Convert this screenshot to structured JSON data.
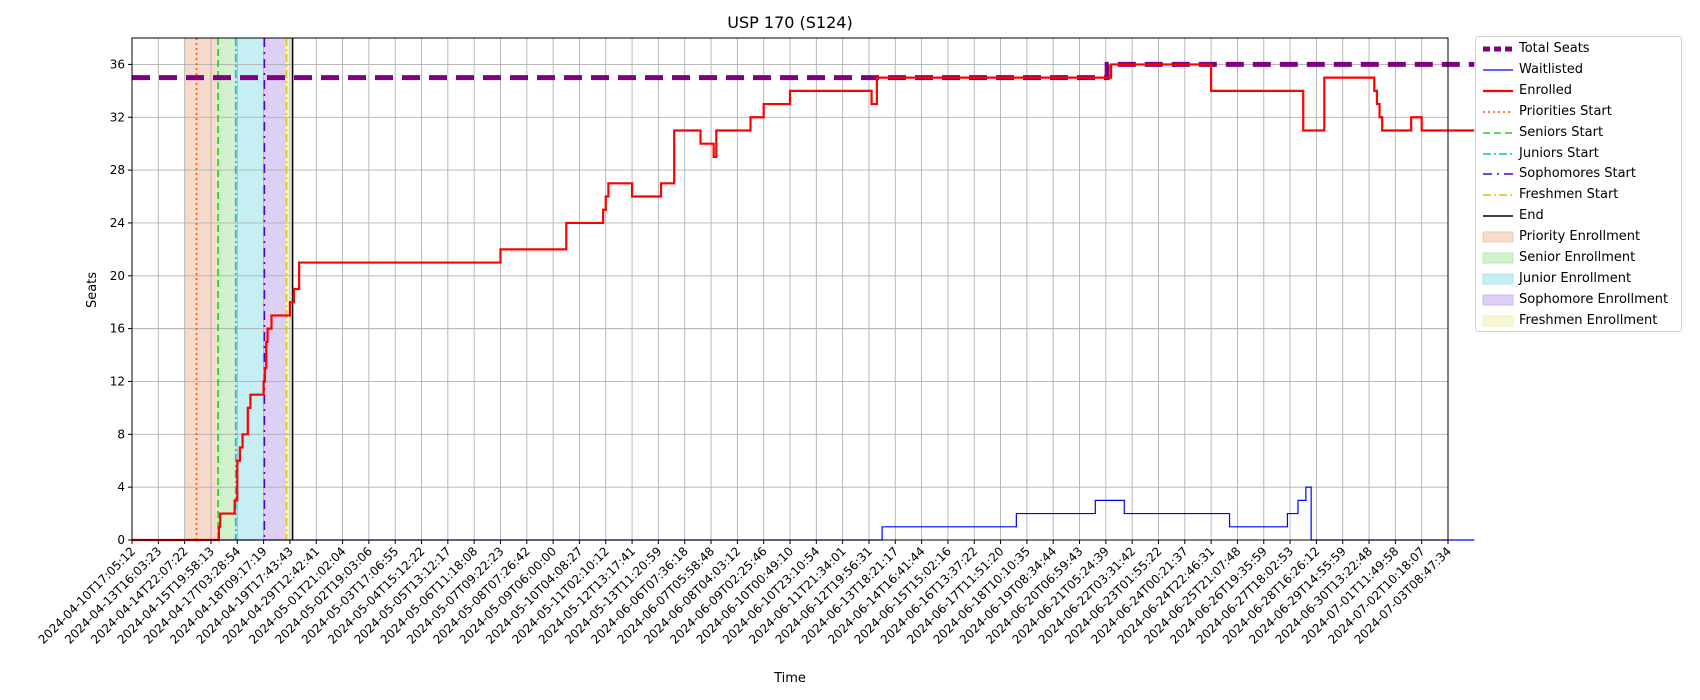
{
  "chart_data": {
    "type": "line",
    "title": "USP 170 (S124)",
    "xlabel": "Time",
    "ylabel": "Seats",
    "ylim": [
      0,
      38
    ],
    "yticks": [
      0,
      4,
      8,
      12,
      16,
      20,
      24,
      28,
      32,
      36
    ],
    "xlim": [
      "2024-04-10T17:05:12",
      "2024-07-04T08:00:00"
    ],
    "grid": true,
    "legend_position": "outside-right",
    "xtick_labels": [
      "2024-04-10T17:05:12",
      "2024-04-13T16:03:23",
      "2024-04-14T22:07:22",
      "2024-04-15T19:58:13",
      "2024-04-17T03:28:54",
      "2024-04-18T09:17:19",
      "2024-04-19T17:43:43",
      "2024-04-29T12:42:41",
      "2024-05-01T21:02:04",
      "2024-05-02T19:03:06",
      "2024-05-03T17:06:55",
      "2024-05-04T15:12:22",
      "2024-05-05T13:12:17",
      "2024-05-06T11:18:08",
      "2024-05-07T09:22:23",
      "2024-05-08T07:26:42",
      "2024-05-09T06:00:00",
      "2024-05-10T04:08:27",
      "2024-05-11T02:10:12",
      "2024-05-12T13:17:41",
      "2024-05-13T11:20:59",
      "2024-06-06T07:36:18",
      "2024-06-07T05:58:48",
      "2024-06-08T04:03:12",
      "2024-06-09T02:25:46",
      "2024-06-10T00:49:10",
      "2024-06-10T23:10:54",
      "2024-06-11T21:34:01",
      "2024-06-12T19:56:31",
      "2024-06-13T18:21:17",
      "2024-06-14T16:41:44",
      "2024-06-15T15:02:16",
      "2024-06-16T13:37:22",
      "2024-06-17T11:51:20",
      "2024-06-18T10:10:35",
      "2024-06-19T08:34:44",
      "2024-06-20T06:59:43",
      "2024-06-21T05:24:39",
      "2024-06-22T03:31:42",
      "2024-06-23T01:55:22",
      "2024-06-24T00:21:37",
      "2024-06-24T22:46:31",
      "2024-06-25T21:07:48",
      "2024-06-26T19:35:59",
      "2024-06-27T18:02:53",
      "2024-06-28T16:26:12",
      "2024-06-29T14:55:59",
      "2024-06-30T13:22:48",
      "2024-07-01T11:49:58",
      "2024-07-02T10:18:07",
      "2024-07-03T08:47:34"
    ],
    "phases": [
      {
        "name": "Priority Enrollment",
        "start_tick": 2.0,
        "end_tick": 3.22,
        "color": "#f5c6b0"
      },
      {
        "name": "Senior Enrollment",
        "start_tick": 3.22,
        "end_tick": 3.9,
        "color": "#b8ebb0"
      },
      {
        "name": "Junior Enrollment",
        "start_tick": 3.9,
        "end_tick": 5.0,
        "color": "#a6e6ec"
      },
      {
        "name": "Sophomore Enrollment",
        "start_tick": 5.0,
        "end_tick": 5.84,
        "color": "#cdb6f0"
      },
      {
        "name": "Freshmen Enrollment",
        "start_tick": 5.84,
        "end_tick": 6.0,
        "color": "#f3f3b8"
      }
    ],
    "markers": [
      {
        "name": "Priorities Start",
        "tick": 2.45,
        "color": "#ff4d00",
        "dash": "2,3"
      },
      {
        "name": "Seniors Start",
        "tick": 3.27,
        "color": "#22cc22",
        "dash": "7,4"
      },
      {
        "name": "Juniors Start",
        "tick": 3.94,
        "color": "#00c4c4",
        "dash": "8,3,2,3"
      },
      {
        "name": "Sophomores Start",
        "tick": 5.03,
        "color": "#5500cc",
        "dash": "9,5,2,5"
      },
      {
        "name": "Freshmen Start",
        "tick": 5.87,
        "color": "#d6c800",
        "dash": "8,3,2,3"
      },
      {
        "name": "End",
        "tick": 6.1,
        "color": "#000000",
        "dash": ""
      }
    ],
    "series": [
      {
        "name": "Total Seats",
        "color": "#800080",
        "style": "dashed-thick",
        "x_ticks": [
          0,
          37.0,
          37.05,
          37.1,
          51
        ],
        "values": [
          35,
          35,
          36,
          36,
          36
        ]
      },
      {
        "name": "Waitlisted",
        "color": "#0000ff",
        "style": "step-thin",
        "x_ticks": [
          0,
          28.5,
          33.6,
          36.6,
          37.7,
          41.7,
          43.9,
          44.3,
          44.6,
          44.62,
          44.8,
          51
        ],
        "values": [
          0,
          1,
          2,
          3,
          2,
          1,
          2,
          3,
          4,
          4,
          0,
          0
        ]
      },
      {
        "name": "Enrolled",
        "color": "#ff0000",
        "style": "step",
        "x_ticks": [
          0,
          3.3,
          3.35,
          3.9,
          4.0,
          4.1,
          4.2,
          4.4,
          4.5,
          4.6,
          5.0,
          5.05,
          5.1,
          5.15,
          5.2,
          5.3,
          5.5,
          6.0,
          6.15,
          6.35,
          14.0,
          16.5,
          17.9,
          18.0,
          18.1,
          19.0,
          20.1,
          20.6,
          21.6,
          21.8,
          22.1,
          22.2,
          23.1,
          23.5,
          24.0,
          25.0,
          26.0,
          28.1,
          28.3,
          37.2,
          41.0,
          44.5,
          45.3,
          47.2,
          47.3,
          47.4,
          47.5,
          48.0,
          48.6,
          49.0,
          51
        ],
        "values": [
          0,
          1,
          2,
          3,
          6,
          7,
          8,
          10,
          11,
          11,
          12,
          13,
          15,
          16,
          16,
          17,
          17,
          18,
          19,
          21,
          22,
          24,
          25,
          26,
          27,
          26,
          27,
          31,
          30,
          30,
          29,
          31,
          31,
          32,
          33,
          34,
          34,
          33,
          35,
          36,
          34,
          31,
          35,
          34,
          33,
          32,
          31,
          31,
          32,
          31,
          31
        ]
      }
    ]
  },
  "legend": [
    {
      "label": "Total Seats",
      "kind": "line",
      "color": "#800080",
      "width": 5,
      "dash": "7,4"
    },
    {
      "label": "Waitlisted",
      "kind": "line",
      "color": "#0000ff",
      "width": 1.2,
      "dash": ""
    },
    {
      "label": "Enrolled",
      "kind": "line",
      "color": "#ff0000",
      "width": 2.2,
      "dash": ""
    },
    {
      "label": "Priorities Start",
      "kind": "line",
      "color": "#ff4d00",
      "width": 1.4,
      "dash": "2,3"
    },
    {
      "label": "Seniors Start",
      "kind": "line",
      "color": "#22cc22",
      "width": 1.4,
      "dash": "7,4"
    },
    {
      "label": "Juniors Start",
      "kind": "line",
      "color": "#00c4c4",
      "width": 1.4,
      "dash": "8,3,2,3"
    },
    {
      "label": "Sophomores Start",
      "kind": "line",
      "color": "#5500cc",
      "width": 1.4,
      "dash": "9,5,2,5"
    },
    {
      "label": "Freshmen Start",
      "kind": "line",
      "color": "#d6c800",
      "width": 1.4,
      "dash": "8,3,2,3"
    },
    {
      "label": "End",
      "kind": "line",
      "color": "#000000",
      "width": 1.6,
      "dash": ""
    },
    {
      "label": "Priority Enrollment",
      "kind": "patch",
      "color": "#f5c6b0"
    },
    {
      "label": "Senior Enrollment",
      "kind": "patch",
      "color": "#b8ebb0"
    },
    {
      "label": "Junior Enrollment",
      "kind": "patch",
      "color": "#a6e6ec"
    },
    {
      "label": "Sophomore Enrollment",
      "kind": "patch",
      "color": "#cdb6f0"
    },
    {
      "label": "Freshmen Enrollment",
      "kind": "patch",
      "color": "#f3f3b8"
    }
  ]
}
